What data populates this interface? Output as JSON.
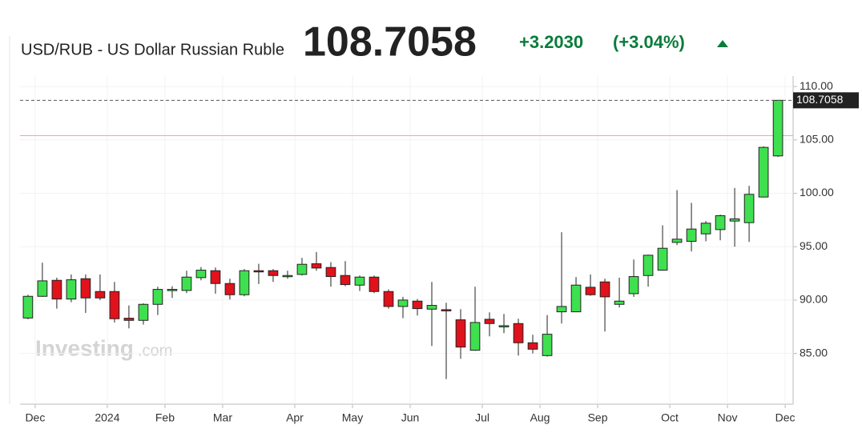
{
  "header": {
    "title": "USD/RUB - US Dollar Russian Ruble",
    "price": "108.7058",
    "change": "+3.2030",
    "change_pct": "(+3.04%)"
  },
  "watermark": {
    "brand": "Investing",
    "suffix": ".com"
  },
  "chart_data": {
    "type": "candlestick",
    "up_color": "#3fe04f",
    "down_color": "#e0121b",
    "grid": true,
    "open": [
      88.32,
      90.35,
      91.85,
      90.1,
      92.0,
      90.8,
      90.8,
      88.3,
      88.1,
      89.6,
      90.9,
      90.9,
      92.1,
      92.75,
      91.55,
      90.5,
      92.75,
      92.75,
      92.3,
      92.4,
      93.4,
      93.05,
      92.3,
      91.4,
      92.15,
      90.8,
      89.4,
      89.9,
      89.15,
      89.1,
      88.15,
      85.3,
      88.2,
      87.6,
      87.8,
      86.0,
      84.8,
      88.9,
      88.9,
      91.2,
      91.7,
      89.6,
      90.6,
      92.3,
      92.8,
      95.4,
      95.5,
      96.2,
      96.6,
      97.4,
      97.25,
      99.65,
      103.5
    ],
    "high": [
      90.5,
      93.5,
      92.1,
      92.4,
      92.4,
      92.4,
      91.7,
      89.5,
      89.7,
      91.25,
      91.3,
      92.75,
      93.1,
      93.05,
      92.0,
      92.9,
      93.4,
      92.9,
      92.75,
      93.95,
      94.5,
      93.55,
      93.65,
      92.3,
      92.3,
      91.0,
      90.3,
      90.1,
      91.7,
      89.75,
      89.15,
      91.25,
      88.85,
      88.7,
      88.25,
      86.75,
      88.6,
      96.35,
      92.15,
      92.4,
      92.0,
      92.1,
      93.8,
      94.25,
      97.0,
      100.3,
      99.1,
      97.4,
      98.0,
      100.5,
      100.7,
      104.4,
      108.7058
    ],
    "low": [
      88.2,
      90.3,
      89.2,
      89.8,
      88.8,
      90.0,
      87.9,
      87.35,
      87.7,
      88.6,
      90.2,
      90.65,
      91.85,
      90.6,
      90.05,
      90.35,
      91.5,
      91.7,
      92.0,
      92.3,
      92.75,
      91.25,
      91.3,
      90.85,
      90.65,
      89.2,
      88.3,
      88.55,
      85.7,
      82.6,
      84.5,
      85.25,
      86.6,
      86.9,
      84.8,
      85.0,
      84.7,
      87.8,
      88.9,
      90.4,
      87.05,
      89.3,
      90.3,
      91.25,
      92.75,
      95.15,
      94.55,
      95.5,
      95.6,
      95.0,
      95.45,
      99.6,
      103.4
    ],
    "close": [
      90.35,
      91.8,
      90.1,
      91.9,
      90.2,
      90.2,
      88.25,
      88.1,
      89.6,
      91.0,
      91.0,
      92.15,
      92.8,
      91.55,
      90.5,
      92.75,
      92.7,
      92.3,
      92.3,
      93.35,
      93.0,
      92.2,
      91.45,
      92.15,
      90.8,
      89.4,
      90.0,
      89.2,
      89.5,
      89.05,
      85.6,
      87.9,
      87.8,
      87.6,
      86.0,
      85.4,
      86.8,
      89.4,
      91.4,
      90.5,
      90.3,
      89.9,
      92.2,
      94.2,
      94.85,
      95.7,
      96.65,
      97.2,
      97.9,
      97.6,
      99.9,
      104.3,
      108.7058
    ],
    "reference_line": 105.4,
    "xlim": [
      -0.55,
      53.05
    ],
    "xticks": [
      {
        "value": 0.5,
        "label": "Dec"
      },
      {
        "value": 5.5,
        "label": "2024"
      },
      {
        "value": 9.5,
        "label": "Feb"
      },
      {
        "value": 13.5,
        "label": "Mar"
      },
      {
        "value": 18.5,
        "label": "Apr"
      },
      {
        "value": 22.5,
        "label": "May"
      },
      {
        "value": 26.5,
        "label": "Jun"
      },
      {
        "value": 31.5,
        "label": "Jul"
      },
      {
        "value": 35.5,
        "label": "Aug"
      },
      {
        "value": 39.5,
        "label": "Sep"
      },
      {
        "value": 44.5,
        "label": "Oct"
      },
      {
        "value": 48.5,
        "label": "Nov"
      },
      {
        "value": 52.5,
        "label": "Dec"
      }
    ],
    "ylim": [
      80.25,
      110.98
    ],
    "yticks": [
      {
        "value": 85,
        "label": "85.00"
      },
      {
        "value": 90,
        "label": "90.00"
      },
      {
        "value": 95,
        "label": "95.00"
      },
      {
        "value": 100,
        "label": "100.00"
      },
      {
        "value": 105,
        "label": "105.00"
      },
      {
        "value": 110,
        "label": "110.00"
      }
    ]
  }
}
